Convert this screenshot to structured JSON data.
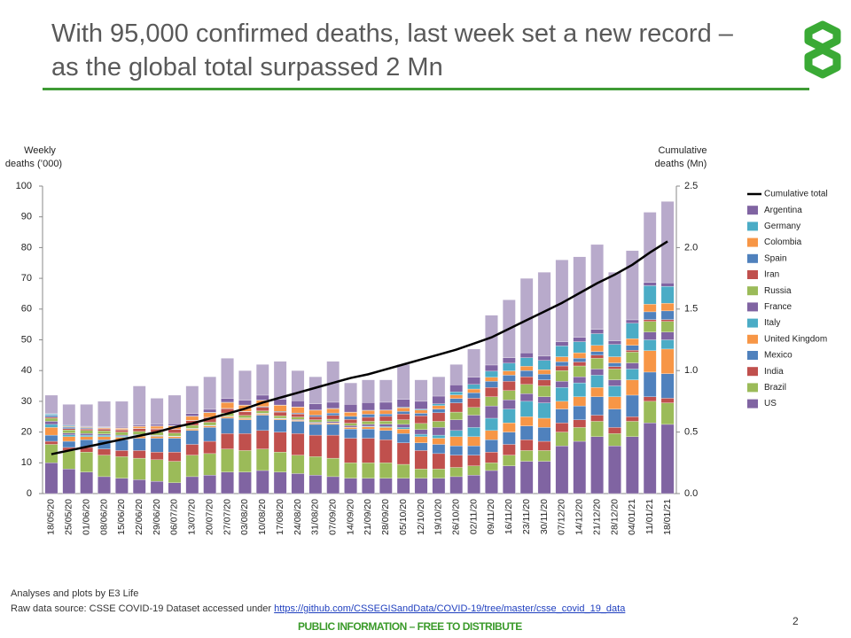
{
  "chart_data": {
    "type": "bar",
    "title": [
      "With 95,000 confirmed deaths, last week set a new record –",
      "as the global total surpassed 2 Mn"
    ],
    "ylabel": [
      "Weekly",
      "deaths (’000)"
    ],
    "y2label": [
      "Cumulative",
      "deaths (Mn)"
    ],
    "categories": [
      "18/05/20",
      "25/05/20",
      "01/06/20",
      "08/06/20",
      "15/06/20",
      "22/06/20",
      "29/06/20",
      "06/07/20",
      "13/07/20",
      "20/07/20",
      "27/07/20",
      "03/08/20",
      "10/08/20",
      "17/08/20",
      "24/08/20",
      "31/08/20",
      "07/09/20",
      "14/09/20",
      "21/09/20",
      "28/09/20",
      "05/10/20",
      "12/10/20",
      "19/10/20",
      "26/10/20",
      "02/11/20",
      "09/11/20",
      "16/11/20",
      "23/11/20",
      "30/11/20",
      "07/12/20",
      "14/12/20",
      "21/12/20",
      "28/12/20",
      "04/01/21",
      "11/01/21",
      "18/01/21"
    ],
    "ylim": [
      0,
      100
    ],
    "yticks": [
      0,
      10,
      20,
      30,
      40,
      50,
      60,
      70,
      80,
      90,
      100
    ],
    "y2lim": [
      0,
      2.5
    ],
    "y2ticks": [
      {
        "value": 0,
        "label": "0.0"
      },
      0.5,
      {
        "value": 1,
        "label": "1.0"
      },
      1.5,
      {
        "value": 2,
        "label": "2.0"
      },
      2.5
    ],
    "series": [
      {
        "name": "US",
        "color": "#8064a2",
        "values": [
          10,
          8,
          7,
          5.5,
          5,
          4.5,
          4,
          3.5,
          5.5,
          6,
          7,
          7,
          7.5,
          7,
          6.5,
          6,
          5.5,
          5,
          5,
          5,
          5,
          5,
          5,
          5.5,
          6,
          7.5,
          9,
          10.5,
          10.5,
          15.5,
          17,
          18.5,
          15.5,
          18.5,
          23,
          22.5
        ]
      },
      {
        "name": "Brazil",
        "color": "#9bbb59",
        "values": [
          6,
          6,
          6.5,
          7,
          7,
          7,
          7,
          7,
          7,
          7,
          7.5,
          7,
          7,
          6.5,
          6,
          6,
          6,
          5,
          5,
          5,
          4.5,
          3,
          3,
          3,
          3,
          2.5,
          3.5,
          3.5,
          3.5,
          4.5,
          4.5,
          5,
          4,
          5,
          7,
          7
        ]
      },
      {
        "name": "India",
        "color": "#c0504d",
        "values": [
          1,
          1,
          1.5,
          2,
          2,
          2.5,
          2.5,
          3,
          3.5,
          4,
          5,
          5.5,
          6,
          6.5,
          7,
          7,
          7.5,
          8,
          8,
          7.5,
          7,
          6,
          5,
          4,
          3.5,
          3.5,
          3.5,
          3.5,
          3,
          3,
          2.5,
          2,
          2,
          1.5,
          1.5,
          1.5
        ]
      },
      {
        "name": "Mexico",
        "color": "#4f81bd",
        "values": [
          2,
          2,
          2.5,
          3,
          3.5,
          4,
          4.5,
          4.5,
          4.5,
          4.5,
          5,
          4.5,
          5,
          4,
          4,
          3.5,
          3.5,
          3,
          3,
          3,
          3,
          2.5,
          3,
          3,
          3,
          4,
          4,
          4.5,
          4.5,
          4.5,
          4.5,
          6,
          6,
          7,
          8,
          8
        ]
      },
      {
        "name": "United Kingdom",
        "color": "#f79646",
        "values": [
          2.5,
          1.5,
          1,
          1,
          0.8,
          0.7,
          0.6,
          0.5,
          0.5,
          0.5,
          0.5,
          0.4,
          0.4,
          0.3,
          0.3,
          0.3,
          0.4,
          0.5,
          0.7,
          1,
          1.5,
          2,
          2,
          3,
          3,
          3,
          3,
          3,
          3,
          2.5,
          3,
          3,
          4,
          5,
          7,
          8
        ]
      },
      {
        "name": "Italy",
        "color": "#4bacc6",
        "values": [
          1,
          0.6,
          0.5,
          0.5,
          0.4,
          0.3,
          0.2,
          0.1,
          0.1,
          0.1,
          0.1,
          0.1,
          0.1,
          0.1,
          0.1,
          0.1,
          0.1,
          0.1,
          0.2,
          0.3,
          0.5,
          0.8,
          1,
          2,
          3,
          4,
          4.5,
          5,
          5,
          4.5,
          4.5,
          4,
          3.5,
          3.5,
          3.5,
          3
        ]
      },
      {
        "name": "France",
        "color": "#8064a2",
        "values": [
          1,
          0.6,
          0.5,
          0.4,
          0.3,
          0.2,
          0.2,
          0.1,
          0.1,
          0.1,
          0.1,
          0.1,
          0.1,
          0.1,
          0.2,
          0.3,
          0.4,
          0.5,
          0.6,
          0.8,
          1,
          1.5,
          2.5,
          3.5,
          4,
          4,
          3,
          2.5,
          2,
          2,
          2,
          2,
          2,
          2,
          2.5,
          2.5
        ]
      },
      {
        "name": "Russia",
        "color": "#9bbb59",
        "values": [
          1,
          1,
          1,
          1,
          1,
          1,
          1,
          1,
          1,
          1,
          1,
          0.8,
          0.8,
          0.8,
          0.8,
          0.8,
          0.8,
          0.8,
          1,
          1,
          1.5,
          2,
          2,
          2.5,
          2.5,
          3,
          3,
          3,
          3.5,
          3.5,
          3.5,
          3.5,
          3.5,
          3.5,
          3.5,
          3.5
        ]
      },
      {
        "name": "Iran",
        "color": "#c0504d",
        "values": [
          0.4,
          0.4,
          0.5,
          0.6,
          0.7,
          0.9,
          1,
          1.2,
          1.5,
          1.5,
          1.4,
          1.2,
          1.2,
          1.2,
          1,
          1,
          1.2,
          1.2,
          1.3,
          1.5,
          1.9,
          2.5,
          2.8,
          3,
          3,
          3,
          3,
          2.5,
          2,
          1.5,
          1.3,
          1,
          0.8,
          0.6,
          0.6,
          0.6
        ]
      },
      {
        "name": "Spain",
        "color": "#4f81bd",
        "values": [
          0.5,
          0.5,
          0.3,
          0.1,
          0.1,
          0.1,
          0.1,
          0.1,
          0.1,
          0.1,
          0.1,
          0.1,
          0.2,
          0.2,
          0.3,
          0.5,
          0.8,
          1,
          1,
          0.8,
          0.8,
          0.8,
          1.2,
          1.4,
          1.8,
          2,
          2,
          2,
          1.8,
          1.4,
          1.2,
          1.2,
          1.2,
          1.6,
          2.5,
          2.8
        ]
      },
      {
        "name": "Colombia",
        "color": "#f79646",
        "values": [
          0.1,
          0.2,
          0.2,
          0.3,
          0.4,
          0.6,
          0.8,
          1,
          1.3,
          1.5,
          1.9,
          2,
          2,
          2,
          1.9,
          1.6,
          1.4,
          1.3,
          1.2,
          1.2,
          1.2,
          1.1,
          1.1,
          1.2,
          1.2,
          1.3,
          1.4,
          1.4,
          1.5,
          1.6,
          1.8,
          2,
          2,
          2.2,
          2.5,
          2.5
        ]
      },
      {
        "name": "Germany",
        "color": "#4bacc6",
        "values": [
          0.4,
          0.3,
          0.2,
          0.1,
          0.1,
          0.1,
          0.1,
          0.1,
          0.1,
          0.1,
          0.1,
          0.1,
          0.1,
          0.1,
          0.1,
          0.1,
          0.1,
          0.1,
          0.1,
          0.1,
          0.2,
          0.3,
          0.6,
          1,
          1.5,
          2,
          2.5,
          2.8,
          3,
          3.5,
          3.6,
          3.8,
          4,
          5,
          6,
          5.5
        ]
      },
      {
        "name": "Argentina",
        "color": "#8064a2",
        "values": [
          0.1,
          0.1,
          0.2,
          0.2,
          0.3,
          0.4,
          0.5,
          0.6,
          0.8,
          1,
          1.2,
          1.5,
          1.6,
          1.8,
          2,
          2,
          2,
          2.5,
          2.5,
          2.5,
          2.5,
          2.5,
          2.5,
          2.3,
          2.3,
          2,
          1.8,
          1.6,
          1.4,
          1.4,
          1.4,
          1.4,
          1.2,
          1.1,
          1.1,
          1.1
        ]
      },
      {
        "color": "#b8aacb",
        "values": [
          6,
          6.8,
          7.1,
          8.3,
          8.4,
          12.7,
          8.5,
          9.3,
          9,
          10.6,
          13.1,
          9.7,
          10,
          12.4,
          9.8,
          8.8,
          13.3,
          7,
          7.4,
          7.3,
          11.4,
          7,
          6.3,
          6.6,
          9.2,
          16.2,
          18.8,
          24.2,
          27.3,
          26.6,
          26.2,
          27.6,
          22.3,
          22.5,
          22.8,
          26.5
        ]
      },
      {
        "name": "Cumulative total",
        "type": "line",
        "axis": "y2",
        "color": "#000000",
        "values": [
          0.32,
          0.35,
          0.38,
          0.41,
          0.44,
          0.47,
          0.5,
          0.54,
          0.57,
          0.61,
          0.65,
          0.69,
          0.74,
          0.78,
          0.82,
          0.86,
          0.9,
          0.94,
          0.97,
          1.01,
          1.05,
          1.09,
          1.13,
          1.17,
          1.22,
          1.27,
          1.34,
          1.41,
          1.48,
          1.55,
          1.63,
          1.71,
          1.78,
          1.86,
          1.96,
          2.05
        ]
      }
    ]
  },
  "footer": {
    "credit": "Analyses and plots by E3 Life",
    "source": "Raw data source: CSSE COVID-19 Dataset accessed under ",
    "link": "https://github.com/CSSEGISandData/COVID-19/tree/master/csse_covid_19_data",
    "page": "2",
    "notice": "PUBLIC INFORMATION – FREE TO DISTRIBUTE"
  }
}
